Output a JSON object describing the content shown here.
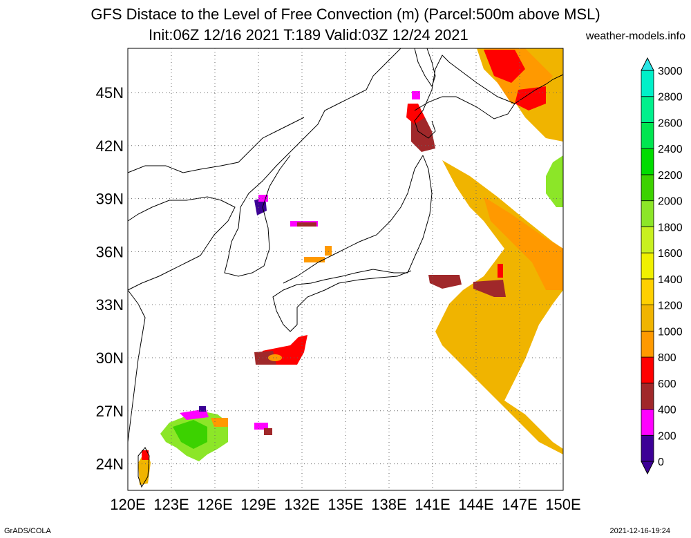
{
  "title": "GFS Distace to the Level of Free Convection (m) (Parcel:500m above MSL)",
  "subtitle": "Init:06Z 12/16 2021 T:189 Valid:03Z 12/24 2021",
  "site": "weather-models.info",
  "credit_left": "GrADS/COLA",
  "credit_right": "2021-12-16-19:24",
  "map": {
    "lon_range": [
      120,
      150
    ],
    "lat_range": [
      22.5,
      47.5
    ],
    "lon_ticks": [
      "120E",
      "123E",
      "126E",
      "129E",
      "132E",
      "135E",
      "138E",
      "141E",
      "144E",
      "147E",
      "150E"
    ],
    "lat_ticks": [
      "24N",
      "27N",
      "30N",
      "33N",
      "36N",
      "39N",
      "42N",
      "45N"
    ],
    "grid": "dotted"
  },
  "colorbar": {
    "labels": [
      "0",
      "200",
      "400",
      "600",
      "800",
      "1000",
      "1200",
      "1400",
      "1600",
      "1800",
      "2000",
      "2200",
      "2400",
      "2600",
      "2800",
      "3000"
    ],
    "colors": [
      "#3c0096",
      "#ff00ff",
      "#a0282a",
      "#ff0000",
      "#ff9900",
      "#f0b400",
      "#ffd000",
      "#f0f000",
      "#c8f020",
      "#8ce628",
      "#3cd200",
      "#00dc00",
      "#00e650",
      "#00f08c",
      "#00f0c8",
      "#28e6e6"
    ]
  },
  "areas": [
    {
      "name": "hokkaido-strip",
      "color": "#ff9900"
    },
    {
      "name": "pacific-east-band",
      "color": "#f0b400"
    },
    {
      "name": "okinawa-green",
      "color": "#8ce628"
    },
    {
      "name": "kyushu-south-red",
      "color": "#ff0000"
    }
  ]
}
